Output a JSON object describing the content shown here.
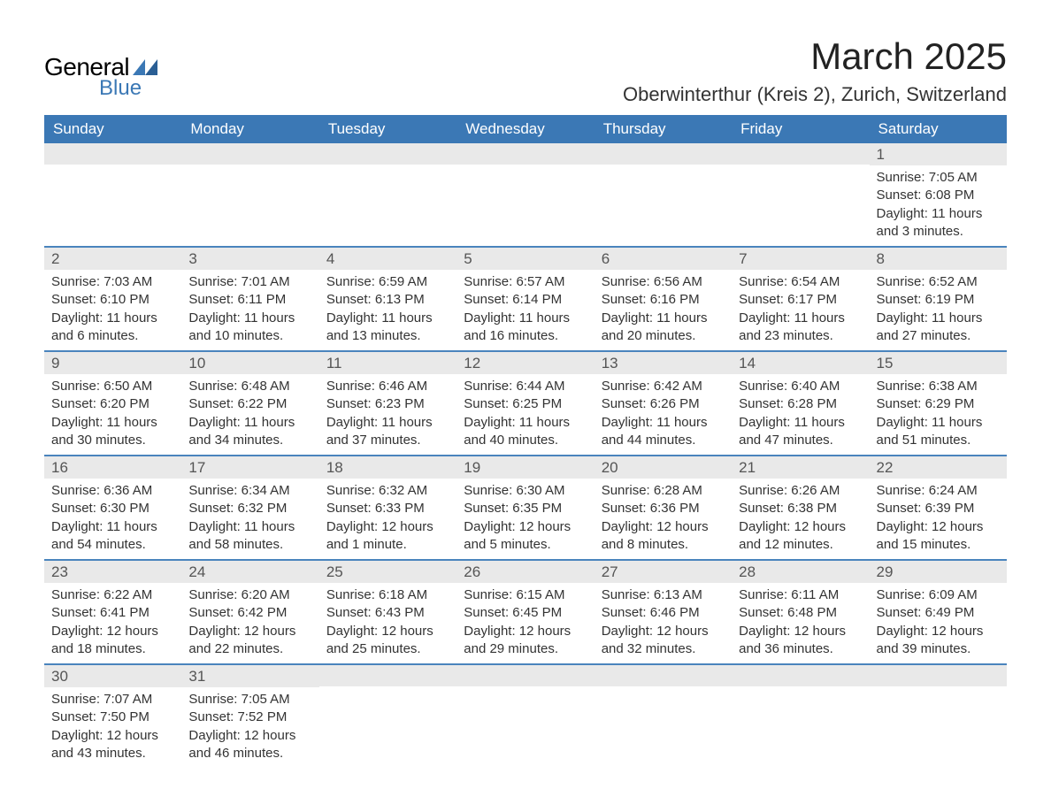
{
  "brand": {
    "word1": "General",
    "word2": "Blue",
    "accent_color": "#3b78b5"
  },
  "header": {
    "month_title": "March 2025",
    "location": "Oberwinterthur (Kreis 2), Zurich, Switzerland"
  },
  "colors": {
    "header_bg": "#3b78b5",
    "header_text": "#ffffff",
    "band_bg": "#e9e9e9",
    "row_border": "#4a84bd",
    "body_text": "#333333"
  },
  "daynames": [
    "Sunday",
    "Monday",
    "Tuesday",
    "Wednesday",
    "Thursday",
    "Friday",
    "Saturday"
  ],
  "weeks": [
    [
      {
        "blank": true
      },
      {
        "blank": true
      },
      {
        "blank": true
      },
      {
        "blank": true
      },
      {
        "blank": true
      },
      {
        "blank": true
      },
      {
        "day": "1",
        "sunrise": "Sunrise: 7:05 AM",
        "sunset": "Sunset: 6:08 PM",
        "dl1": "Daylight: 11 hours",
        "dl2": "and 3 minutes."
      }
    ],
    [
      {
        "day": "2",
        "sunrise": "Sunrise: 7:03 AM",
        "sunset": "Sunset: 6:10 PM",
        "dl1": "Daylight: 11 hours",
        "dl2": "and 6 minutes."
      },
      {
        "day": "3",
        "sunrise": "Sunrise: 7:01 AM",
        "sunset": "Sunset: 6:11 PM",
        "dl1": "Daylight: 11 hours",
        "dl2": "and 10 minutes."
      },
      {
        "day": "4",
        "sunrise": "Sunrise: 6:59 AM",
        "sunset": "Sunset: 6:13 PM",
        "dl1": "Daylight: 11 hours",
        "dl2": "and 13 minutes."
      },
      {
        "day": "5",
        "sunrise": "Sunrise: 6:57 AM",
        "sunset": "Sunset: 6:14 PM",
        "dl1": "Daylight: 11 hours",
        "dl2": "and 16 minutes."
      },
      {
        "day": "6",
        "sunrise": "Sunrise: 6:56 AM",
        "sunset": "Sunset: 6:16 PM",
        "dl1": "Daylight: 11 hours",
        "dl2": "and 20 minutes."
      },
      {
        "day": "7",
        "sunrise": "Sunrise: 6:54 AM",
        "sunset": "Sunset: 6:17 PM",
        "dl1": "Daylight: 11 hours",
        "dl2": "and 23 minutes."
      },
      {
        "day": "8",
        "sunrise": "Sunrise: 6:52 AM",
        "sunset": "Sunset: 6:19 PM",
        "dl1": "Daylight: 11 hours",
        "dl2": "and 27 minutes."
      }
    ],
    [
      {
        "day": "9",
        "sunrise": "Sunrise: 6:50 AM",
        "sunset": "Sunset: 6:20 PM",
        "dl1": "Daylight: 11 hours",
        "dl2": "and 30 minutes."
      },
      {
        "day": "10",
        "sunrise": "Sunrise: 6:48 AM",
        "sunset": "Sunset: 6:22 PM",
        "dl1": "Daylight: 11 hours",
        "dl2": "and 34 minutes."
      },
      {
        "day": "11",
        "sunrise": "Sunrise: 6:46 AM",
        "sunset": "Sunset: 6:23 PM",
        "dl1": "Daylight: 11 hours",
        "dl2": "and 37 minutes."
      },
      {
        "day": "12",
        "sunrise": "Sunrise: 6:44 AM",
        "sunset": "Sunset: 6:25 PM",
        "dl1": "Daylight: 11 hours",
        "dl2": "and 40 minutes."
      },
      {
        "day": "13",
        "sunrise": "Sunrise: 6:42 AM",
        "sunset": "Sunset: 6:26 PM",
        "dl1": "Daylight: 11 hours",
        "dl2": "and 44 minutes."
      },
      {
        "day": "14",
        "sunrise": "Sunrise: 6:40 AM",
        "sunset": "Sunset: 6:28 PM",
        "dl1": "Daylight: 11 hours",
        "dl2": "and 47 minutes."
      },
      {
        "day": "15",
        "sunrise": "Sunrise: 6:38 AM",
        "sunset": "Sunset: 6:29 PM",
        "dl1": "Daylight: 11 hours",
        "dl2": "and 51 minutes."
      }
    ],
    [
      {
        "day": "16",
        "sunrise": "Sunrise: 6:36 AM",
        "sunset": "Sunset: 6:30 PM",
        "dl1": "Daylight: 11 hours",
        "dl2": "and 54 minutes."
      },
      {
        "day": "17",
        "sunrise": "Sunrise: 6:34 AM",
        "sunset": "Sunset: 6:32 PM",
        "dl1": "Daylight: 11 hours",
        "dl2": "and 58 minutes."
      },
      {
        "day": "18",
        "sunrise": "Sunrise: 6:32 AM",
        "sunset": "Sunset: 6:33 PM",
        "dl1": "Daylight: 12 hours",
        "dl2": "and 1 minute."
      },
      {
        "day": "19",
        "sunrise": "Sunrise: 6:30 AM",
        "sunset": "Sunset: 6:35 PM",
        "dl1": "Daylight: 12 hours",
        "dl2": "and 5 minutes."
      },
      {
        "day": "20",
        "sunrise": "Sunrise: 6:28 AM",
        "sunset": "Sunset: 6:36 PM",
        "dl1": "Daylight: 12 hours",
        "dl2": "and 8 minutes."
      },
      {
        "day": "21",
        "sunrise": "Sunrise: 6:26 AM",
        "sunset": "Sunset: 6:38 PM",
        "dl1": "Daylight: 12 hours",
        "dl2": "and 12 minutes."
      },
      {
        "day": "22",
        "sunrise": "Sunrise: 6:24 AM",
        "sunset": "Sunset: 6:39 PM",
        "dl1": "Daylight: 12 hours",
        "dl2": "and 15 minutes."
      }
    ],
    [
      {
        "day": "23",
        "sunrise": "Sunrise: 6:22 AM",
        "sunset": "Sunset: 6:41 PM",
        "dl1": "Daylight: 12 hours",
        "dl2": "and 18 minutes."
      },
      {
        "day": "24",
        "sunrise": "Sunrise: 6:20 AM",
        "sunset": "Sunset: 6:42 PM",
        "dl1": "Daylight: 12 hours",
        "dl2": "and 22 minutes."
      },
      {
        "day": "25",
        "sunrise": "Sunrise: 6:18 AM",
        "sunset": "Sunset: 6:43 PM",
        "dl1": "Daylight: 12 hours",
        "dl2": "and 25 minutes."
      },
      {
        "day": "26",
        "sunrise": "Sunrise: 6:15 AM",
        "sunset": "Sunset: 6:45 PM",
        "dl1": "Daylight: 12 hours",
        "dl2": "and 29 minutes."
      },
      {
        "day": "27",
        "sunrise": "Sunrise: 6:13 AM",
        "sunset": "Sunset: 6:46 PM",
        "dl1": "Daylight: 12 hours",
        "dl2": "and 32 minutes."
      },
      {
        "day": "28",
        "sunrise": "Sunrise: 6:11 AM",
        "sunset": "Sunset: 6:48 PM",
        "dl1": "Daylight: 12 hours",
        "dl2": "and 36 minutes."
      },
      {
        "day": "29",
        "sunrise": "Sunrise: 6:09 AM",
        "sunset": "Sunset: 6:49 PM",
        "dl1": "Daylight: 12 hours",
        "dl2": "and 39 minutes."
      }
    ],
    [
      {
        "day": "30",
        "sunrise": "Sunrise: 7:07 AM",
        "sunset": "Sunset: 7:50 PM",
        "dl1": "Daylight: 12 hours",
        "dl2": "and 43 minutes."
      },
      {
        "day": "31",
        "sunrise": "Sunrise: 7:05 AM",
        "sunset": "Sunset: 7:52 PM",
        "dl1": "Daylight: 12 hours",
        "dl2": "and 46 minutes."
      },
      {
        "blank": true
      },
      {
        "blank": true
      },
      {
        "blank": true
      },
      {
        "blank": true
      },
      {
        "blank": true
      }
    ]
  ]
}
